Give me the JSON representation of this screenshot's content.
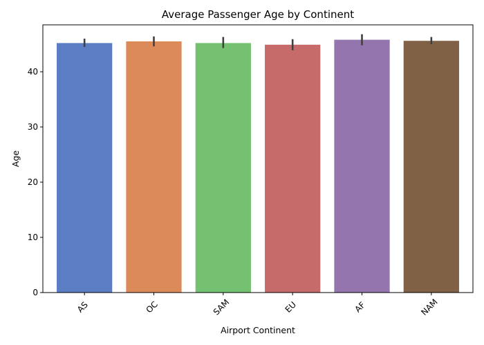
{
  "chart_data": {
    "type": "bar",
    "title": "Average Passenger Age by Continent",
    "xlabel": "Airport Continent",
    "ylabel": "Age",
    "categories": [
      "AS",
      "OC",
      "SAM",
      "EU",
      "AF",
      "NAM"
    ],
    "values": [
      45.2,
      45.5,
      45.2,
      44.9,
      45.8,
      45.6
    ],
    "error_low": [
      44.5,
      44.6,
      44.3,
      43.9,
      44.8,
      45.0
    ],
    "error_high": [
      46.0,
      46.4,
      46.3,
      45.9,
      46.8,
      46.3
    ],
    "colors": [
      "#5a7dc4",
      "#dd8a5b",
      "#75c172",
      "#c76b6a",
      "#9475ae",
      "#816145"
    ],
    "ylim": [
      0,
      48.5
    ],
    "yticks": [
      0,
      10,
      20,
      30,
      40
    ],
    "ytick_labels": [
      "0",
      "10",
      "20",
      "30",
      "40"
    ],
    "grid": false,
    "xtick_rotation": 45
  }
}
